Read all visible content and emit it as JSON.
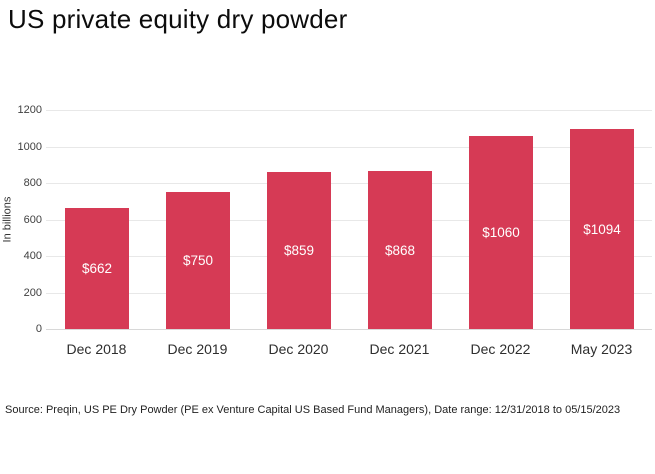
{
  "chart_data": {
    "type": "bar",
    "title": "US private equity dry powder",
    "xlabel": "",
    "ylabel": "In billions",
    "categories": [
      "Dec 2018",
      "Dec 2019",
      "Dec 2020",
      "Dec 2021",
      "Dec 2022",
      "May 2023"
    ],
    "values": [
      662,
      750,
      859,
      868,
      1060,
      1094
    ],
    "bar_labels": [
      "$662",
      "$750",
      "$859",
      "$868",
      "$1060",
      "$1094"
    ],
    "ylim": [
      0,
      1200
    ],
    "yticks": [
      0,
      200,
      400,
      600,
      800,
      1000,
      1200
    ],
    "grid": true,
    "legend": "none",
    "bar_color": "#d63a55",
    "bar_label_color": "#ffffff",
    "gridline_color": "#e8e8e8",
    "axis_line_color": "#d8d8d8"
  },
  "footer": {
    "source": "Source: Preqin, US PE Dry Powder (PE ex Venture Capital US Based Fund Managers), Date range: 12/31/2018 to 05/15/2023"
  }
}
